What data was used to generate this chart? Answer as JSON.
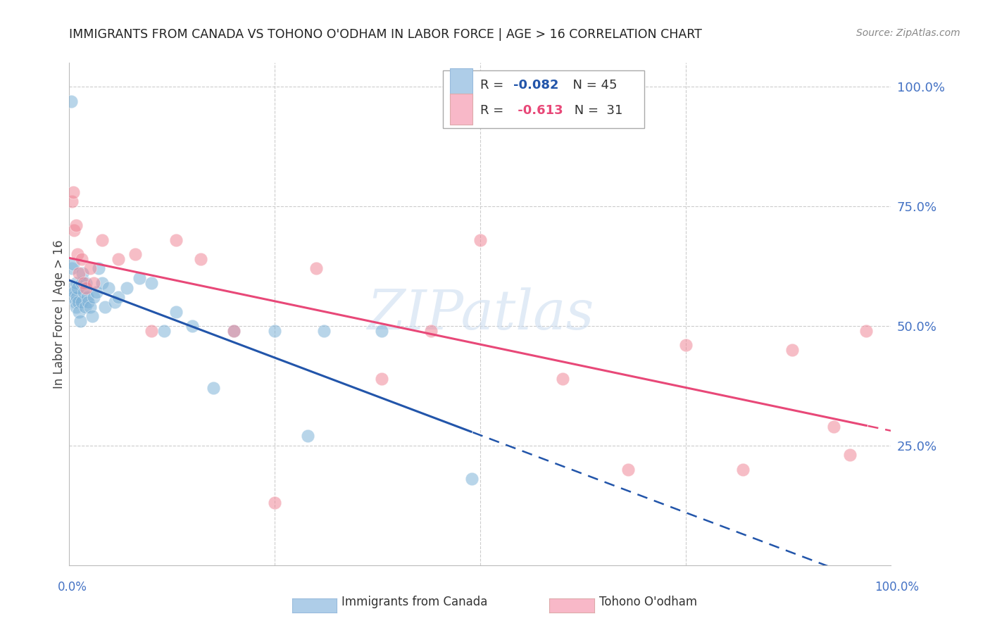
{
  "title": "IMMIGRANTS FROM CANADA VS TOHONO O'ODHAM IN LABOR FORCE | AGE > 16 CORRELATION CHART",
  "source": "Source: ZipAtlas.com",
  "ylabel": "In Labor Force | Age > 16",
  "right_yticks": [
    "100.0%",
    "75.0%",
    "50.0%",
    "25.0%"
  ],
  "right_ytick_vals": [
    1.0,
    0.75,
    0.5,
    0.25
  ],
  "canada_R": -0.082,
  "canada_N": 45,
  "tohono_R": -0.613,
  "tohono_N": 31,
  "canada_color": "#7fb3d8",
  "tohono_color": "#f08898",
  "canada_legend_color": "#aecde8",
  "tohono_legend_color": "#f8b8c8",
  "canada_line_color": "#2255aa",
  "tohono_line_color": "#e84878",
  "background_color": "#ffffff",
  "grid_color": "#cccccc",
  "watermark": "ZIPatlas",
  "title_color": "#222222",
  "right_axis_color": "#4472c4",
  "canada_x": [
    0.002,
    0.003,
    0.004,
    0.005,
    0.005,
    0.006,
    0.007,
    0.008,
    0.008,
    0.009,
    0.01,
    0.011,
    0.012,
    0.013,
    0.015,
    0.015,
    0.016,
    0.018,
    0.019,
    0.02,
    0.022,
    0.023,
    0.025,
    0.028,
    0.03,
    0.033,
    0.036,
    0.04,
    0.043,
    0.048,
    0.055,
    0.06,
    0.07,
    0.085,
    0.1,
    0.115,
    0.13,
    0.15,
    0.175,
    0.2,
    0.25,
    0.31,
    0.38,
    0.29,
    0.49
  ],
  "canada_y": [
    0.97,
    0.62,
    0.58,
    0.56,
    0.63,
    0.57,
    0.55,
    0.59,
    0.54,
    0.56,
    0.58,
    0.55,
    0.53,
    0.51,
    0.55,
    0.59,
    0.61,
    0.57,
    0.54,
    0.59,
    0.56,
    0.55,
    0.54,
    0.52,
    0.56,
    0.57,
    0.62,
    0.59,
    0.54,
    0.58,
    0.55,
    0.56,
    0.58,
    0.6,
    0.59,
    0.49,
    0.53,
    0.5,
    0.37,
    0.49,
    0.49,
    0.49,
    0.49,
    0.27,
    0.18
  ],
  "tohono_x": [
    0.003,
    0.005,
    0.006,
    0.008,
    0.01,
    0.012,
    0.015,
    0.018,
    0.02,
    0.025,
    0.03,
    0.04,
    0.06,
    0.08,
    0.1,
    0.13,
    0.16,
    0.2,
    0.25,
    0.3,
    0.38,
    0.44,
    0.5,
    0.6,
    0.68,
    0.75,
    0.82,
    0.88,
    0.93,
    0.95,
    0.97
  ],
  "tohono_y": [
    0.76,
    0.78,
    0.7,
    0.71,
    0.65,
    0.61,
    0.64,
    0.59,
    0.58,
    0.62,
    0.59,
    0.68,
    0.64,
    0.65,
    0.49,
    0.68,
    0.64,
    0.49,
    0.13,
    0.62,
    0.39,
    0.49,
    0.68,
    0.39,
    0.2,
    0.46,
    0.2,
    0.45,
    0.29,
    0.23,
    0.49
  ],
  "xlim": [
    0.0,
    1.0
  ],
  "ylim": [
    0.0,
    1.05
  ]
}
